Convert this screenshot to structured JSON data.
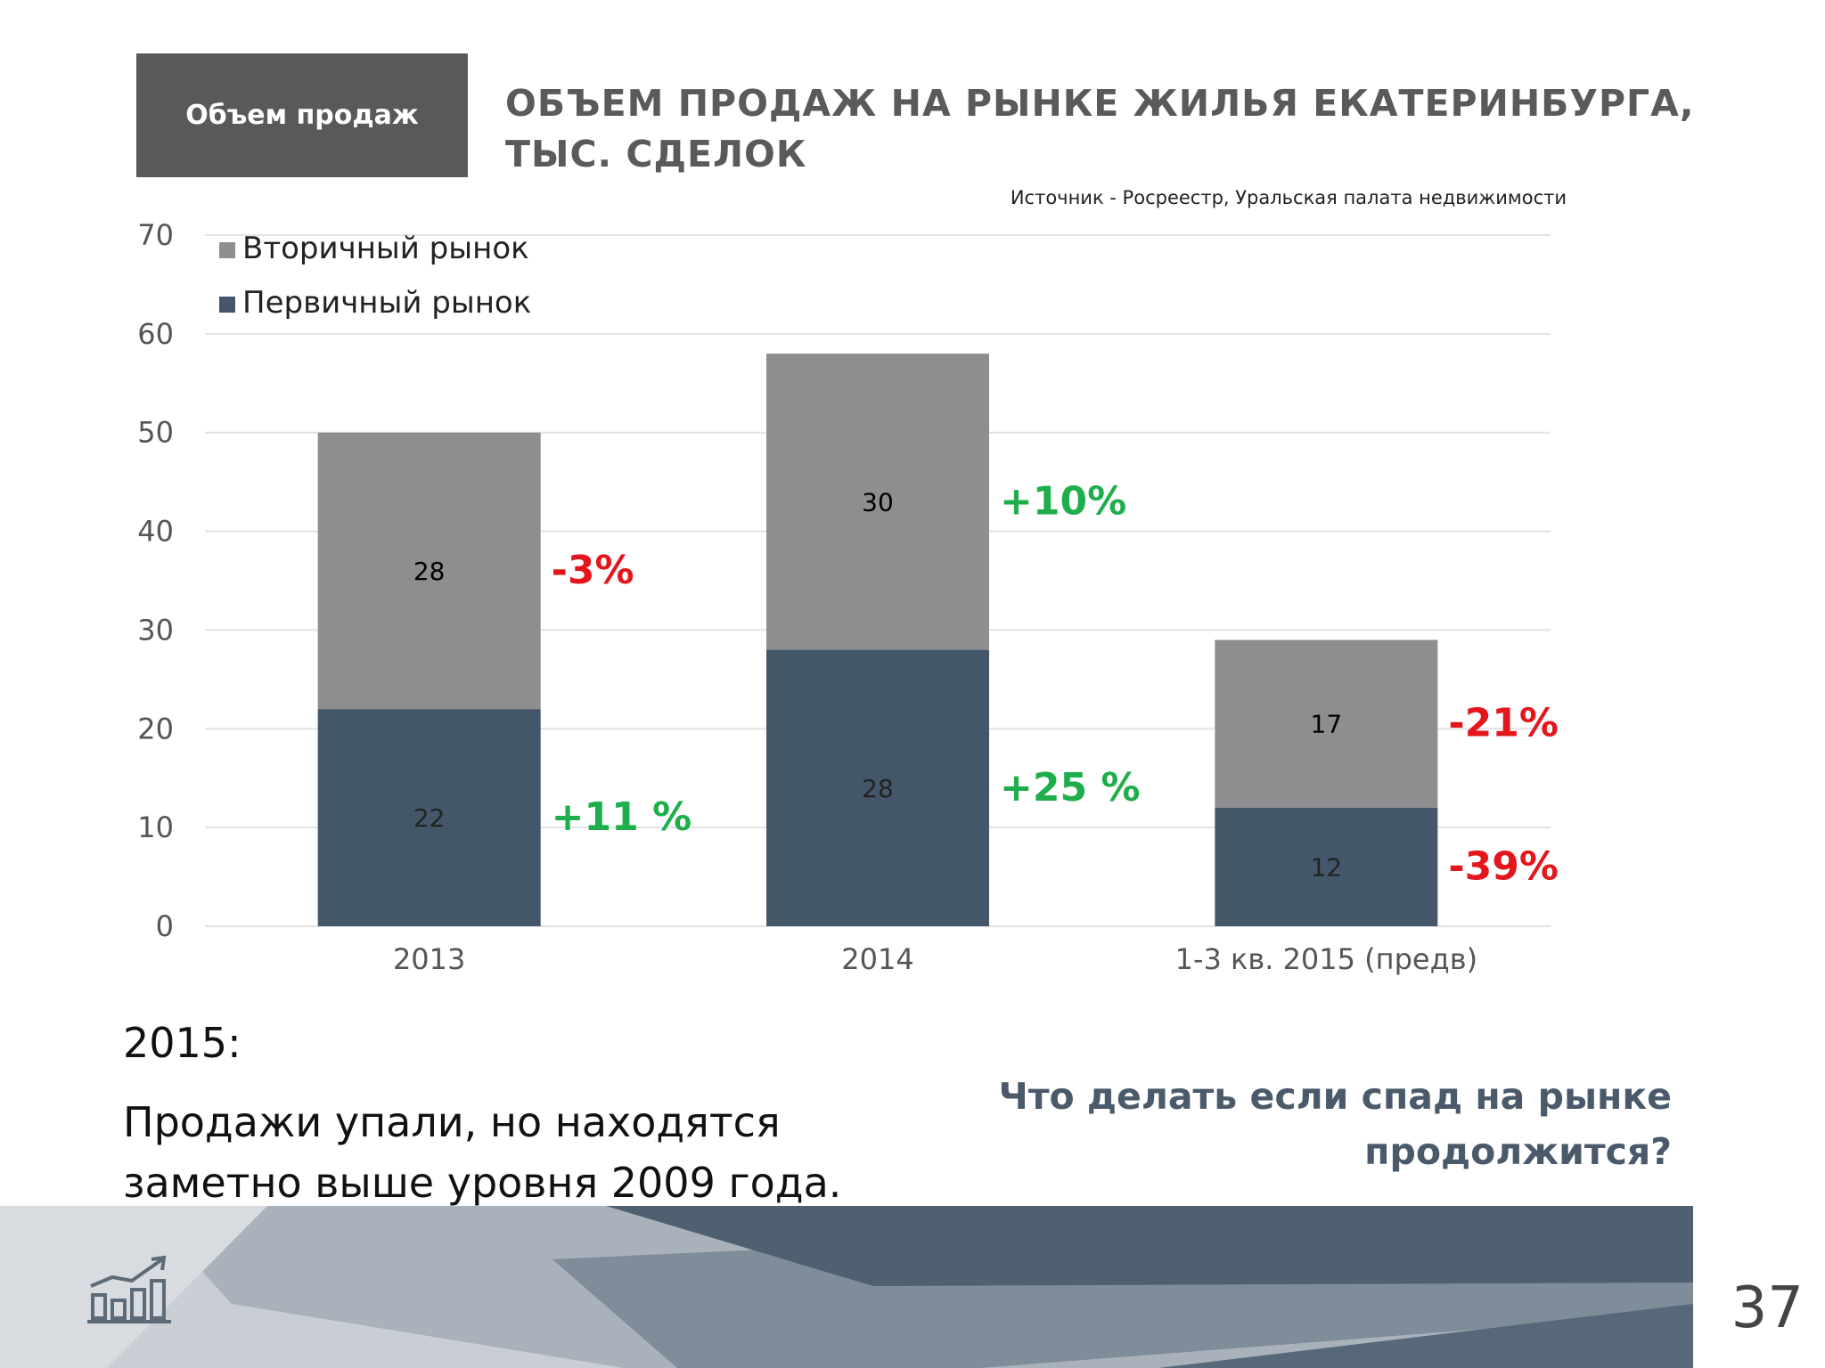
{
  "header": {
    "section_label": "Объем продаж",
    "title_line1": "ОБЪЕМ ПРОДАЖ НА РЫНКЕ ЖИЛЬЯ ЕКАТЕРИНБУРГА,",
    "title_line2": "ТЫС. СДЕЛОК",
    "source": "Источник - Росреестр, Уральская палата недвижимости"
  },
  "chart_data": {
    "type": "bar",
    "stacked": true,
    "categories": [
      "2013",
      "2014",
      "1-3 кв. 2015 (предв)"
    ],
    "series": [
      {
        "name": "Первичный рынок",
        "values": [
          22,
          28,
          12
        ],
        "color": "#44576a",
        "label_color": "#222222"
      },
      {
        "name": "Вторичный рынок",
        "values": [
          28,
          30,
          17
        ],
        "color": "#8e8e90",
        "label_color": "#000000"
      }
    ],
    "legend_order": [
      "Вторичный рынок",
      "Первичный рынок"
    ],
    "legend_position": "top-left",
    "ylim": [
      0,
      70
    ],
    "yticks": [
      0,
      10,
      20,
      30,
      40,
      50,
      60,
      70
    ],
    "grid": true,
    "annotations": [
      {
        "category": "2013",
        "series": "Вторичный рынок",
        "text": "-3%",
        "color": "#e3161c"
      },
      {
        "category": "2013",
        "series": "Первичный рынок",
        "text": "+11 %",
        "color": "#1fae4c"
      },
      {
        "category": "2014",
        "series": "Вторичный рынок",
        "text": "+10%",
        "color": "#1fae4c"
      },
      {
        "category": "2014",
        "series": "Первичный рынок",
        "text": "+25 %",
        "color": "#1fae4c"
      },
      {
        "category": "1-3 кв. 2015 (предв)",
        "series": "Вторичный рынок",
        "text": "-21%",
        "color": "#e3161c"
      },
      {
        "category": "1-3 кв. 2015 (предв)",
        "series": "Первичный рынок",
        "text": "-39%",
        "color": "#e3161c"
      }
    ]
  },
  "notes": {
    "year": "2015:",
    "text": "Продажи упали, но находятся заметно выше уровня 2009 года.",
    "question": "Что делать если спад на рынке продолжится?"
  },
  "footer": {
    "page_number": "37",
    "logo_icon": "chart-growth-icon"
  }
}
